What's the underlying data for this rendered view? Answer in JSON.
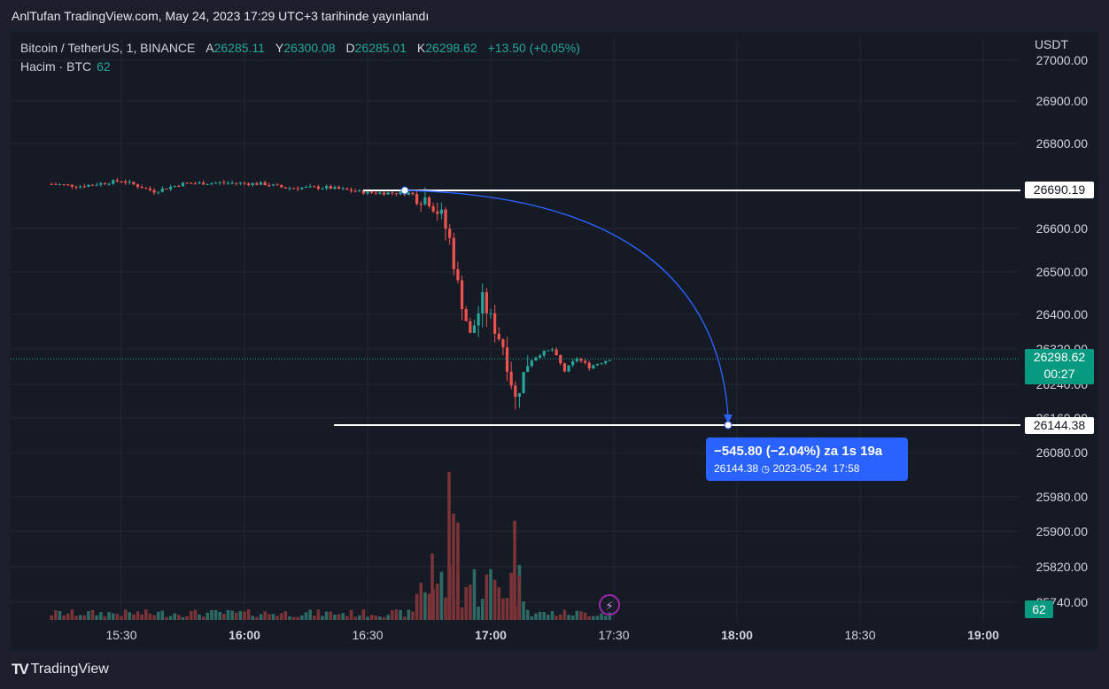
{
  "publish_line": "AnlTufan TradingView.com, May 24, 2023 17:29 UTC+3 tarihinde yayınlandı",
  "legend": {
    "symbol": "Bitcoin / TetherUS, 1, BINANCE",
    "open_key": "A",
    "open_val": "26285.11",
    "high_key": "Y",
    "high_val": "26300.08",
    "low_key": "D",
    "low_val": "26285.01",
    "close_key": "K",
    "close_val": "26298.62",
    "change": "+13.50 (+0.05%)",
    "volume_label": "Hacim · BTC",
    "volume_val": "62"
  },
  "price_tag": {
    "price": "26298.62",
    "countdown": "00:27"
  },
  "horizontal_lines": [
    {
      "price": 26690.19,
      "label": "26690.19"
    },
    {
      "price": 26144.38,
      "label": "26144.38"
    }
  ],
  "volume_tag": "62",
  "measure": {
    "headline": "−545.80 (−2.04%) za 1s 19a",
    "detail_price": "26144.38",
    "detail_date": "2023-05-24",
    "detail_time": "17:58"
  },
  "brand": "TradingView",
  "colors": {
    "up": "#26a69a",
    "down": "#ef5350",
    "up_volume": "#2d6a65",
    "down_volume": "#7a3437",
    "measure_blue": "#2962ff",
    "line_white": "#ffffff"
  },
  "chart_data": {
    "type": "candlestick",
    "symbol": "Bitcoin / TetherUS",
    "interval": "1",
    "exchange": "BINANCE",
    "currency": "USDT",
    "x_axis_ticks": [
      "15:30",
      "16:00",
      "16:30",
      "17:00",
      "17:30",
      "18:00",
      "18:30",
      "19:00"
    ],
    "y_axis_ticks": [
      "27000.00",
      "26900.00",
      "26800.00",
      "26600.00",
      "26500.00",
      "26400.00",
      "26320.00",
      "26240.00",
      "26160.00",
      "26080.00",
      "25980.00",
      "25900.00",
      "25820.00",
      "25740.00"
    ],
    "last_price": 26298.62,
    "series_points": [
      {
        "t": "15:13",
        "close": 26705
      },
      {
        "t": "15:20",
        "close": 26700
      },
      {
        "t": "15:30",
        "close": 26713
      },
      {
        "t": "15:38",
        "close": 26688
      },
      {
        "t": "15:45",
        "close": 26706
      },
      {
        "t": "15:55",
        "close": 26708
      },
      {
        "t": "16:05",
        "close": 26705
      },
      {
        "t": "16:10",
        "close": 26696
      },
      {
        "t": "16:20",
        "close": 26697
      },
      {
        "t": "16:30",
        "close": 26685
      },
      {
        "t": "16:40",
        "close": 26684
      },
      {
        "t": "16:45",
        "close": 26670
      },
      {
        "t": "16:48",
        "close": 26630
      },
      {
        "t": "16:50",
        "close": 26575
      },
      {
        "t": "16:52",
        "close": 26470
      },
      {
        "t": "16:55",
        "close": 26350
      },
      {
        "t": "16:58",
        "close": 26435
      },
      {
        "t": "17:00",
        "close": 26390
      },
      {
        "t": "17:03",
        "close": 26330
      },
      {
        "t": "17:06",
        "close": 26205
      },
      {
        "t": "17:09",
        "close": 26290
      },
      {
        "t": "17:12",
        "close": 26310
      },
      {
        "t": "17:15",
        "close": 26320
      },
      {
        "t": "17:18",
        "close": 26270
      },
      {
        "t": "17:21",
        "close": 26300
      },
      {
        "t": "17:24",
        "close": 26280
      },
      {
        "t": "17:29",
        "close": 26298.62
      }
    ]
  }
}
